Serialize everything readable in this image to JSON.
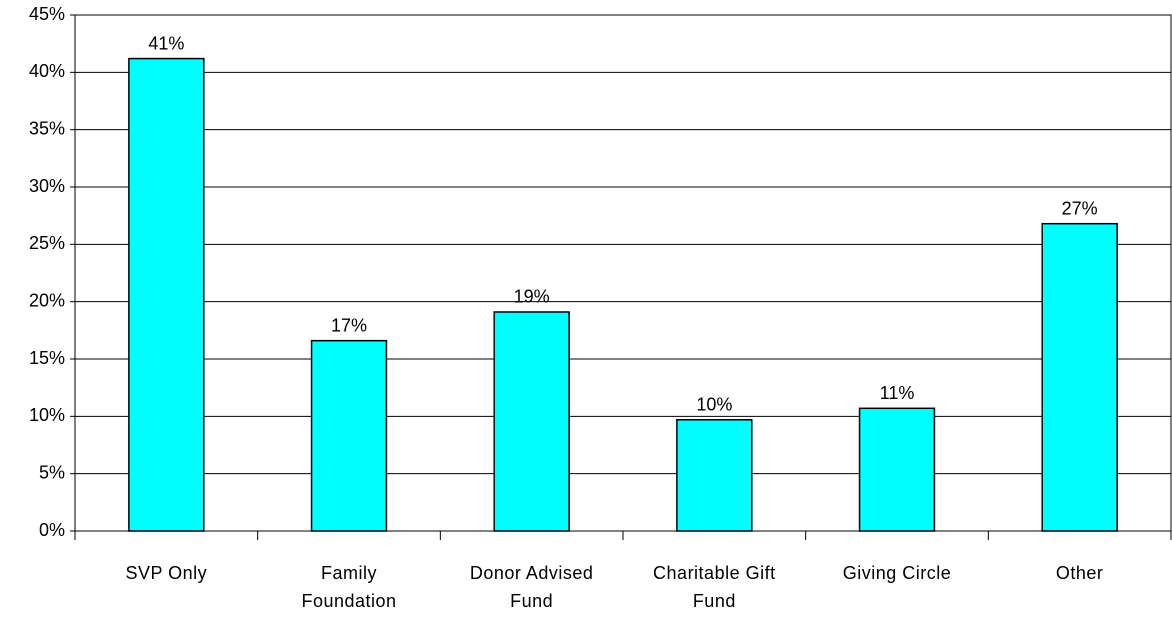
{
  "chart_data": {
    "type": "bar",
    "categories": [
      "SVP Only",
      "Family Foundation",
      "Donor Advised Fund",
      "Charitable Gift Fund",
      "Giving Circle",
      "Other"
    ],
    "values": [
      41.2,
      16.6,
      19.1,
      9.7,
      10.7,
      26.8
    ],
    "value_labels": [
      "41%",
      "17%",
      "19%",
      "10%",
      "11%",
      "27%"
    ],
    "color": "#00ffff",
    "ylim": [
      0,
      45
    ],
    "yticks": [
      {
        "value": 0,
        "label": "0%"
      },
      {
        "value": 5,
        "label": "5%"
      },
      {
        "value": 10,
        "label": "10%"
      },
      {
        "value": 15,
        "label": "15%"
      },
      {
        "value": 20,
        "label": "20%"
      },
      {
        "value": 25,
        "label": "25%"
      },
      {
        "value": 30,
        "label": "30%"
      },
      {
        "value": 35,
        "label": "35%"
      },
      {
        "value": 40,
        "label": "40%"
      },
      {
        "value": 45,
        "label": "45%"
      }
    ],
    "grid": true
  }
}
